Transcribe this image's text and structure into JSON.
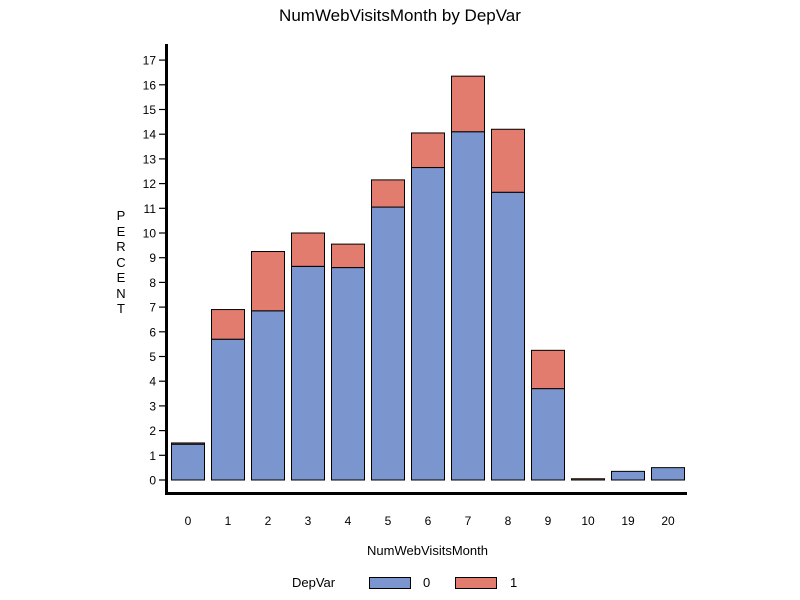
{
  "chart_data": {
    "type": "bar",
    "stacked": true,
    "title": "NumWebVisitsMonth  by  DepVar",
    "xlabel": "NumWebVisitsMonth",
    "ylabel": "PERCENT",
    "categories": [
      "0",
      "1",
      "2",
      "3",
      "4",
      "5",
      "6",
      "7",
      "8",
      "9",
      "10",
      "19",
      "20"
    ],
    "ylim": [
      0,
      17
    ],
    "yticks": [
      0,
      1,
      2,
      3,
      4,
      5,
      6,
      7,
      8,
      9,
      10,
      11,
      12,
      13,
      14,
      15,
      16,
      17
    ],
    "series": [
      {
        "name": "0",
        "color": "#7b96cf",
        "values": [
          1.45,
          5.7,
          6.85,
          8.65,
          8.6,
          11.05,
          12.65,
          14.1,
          11.65,
          3.7,
          0.0,
          0.35,
          0.5
        ]
      },
      {
        "name": "1",
        "color": "#e17c6e",
        "values": [
          0.05,
          1.2,
          2.4,
          1.35,
          0.95,
          1.1,
          1.4,
          2.25,
          2.55,
          1.55,
          0.05,
          0.0,
          0.0
        ]
      }
    ],
    "legend": {
      "title": "DepVar",
      "position": "bottom"
    },
    "grid": false
  }
}
